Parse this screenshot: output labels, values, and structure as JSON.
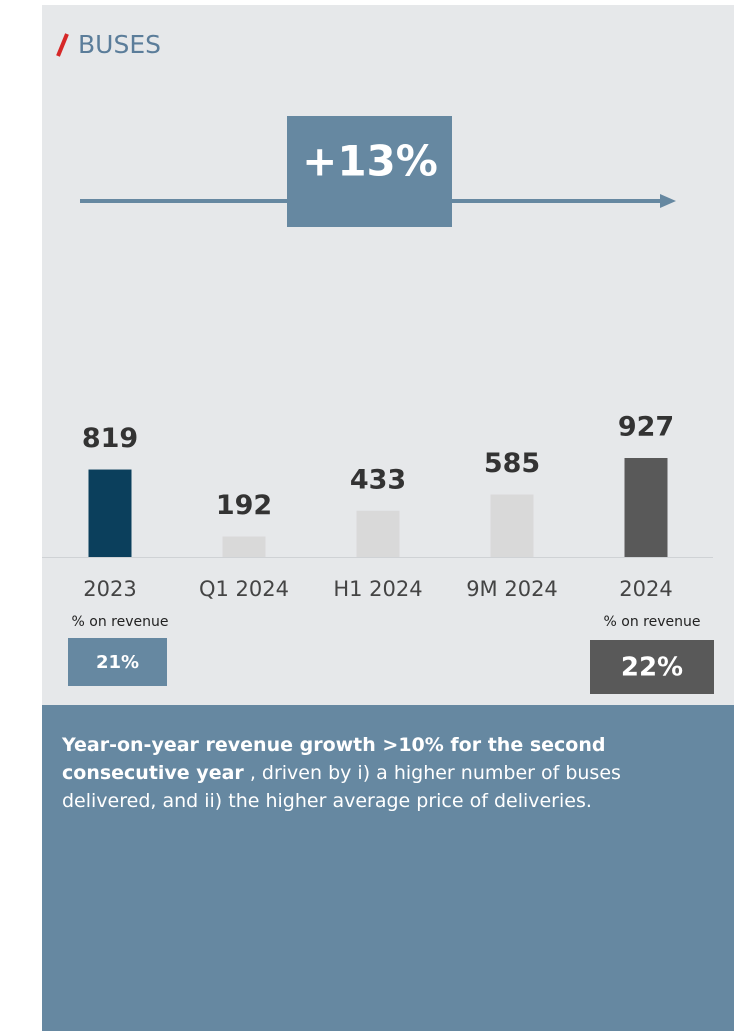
{
  "chart_data": {
    "type": "bar",
    "title": "BUSES",
    "growth": {
      "value": 13,
      "label": "+13%"
    },
    "categories": [
      "2023",
      "Q1 2024",
      "H1 2024",
      "9M 2024",
      "2024"
    ],
    "values": [
      819,
      192,
      433,
      585,
      927
    ],
    "colors": [
      "#0b3f5c",
      "#d9d9d9",
      "#d9d9d9",
      "#d9d9d9",
      "#595959"
    ],
    "revenue_share": [
      {
        "label": "% on revenue",
        "value": 21,
        "value_label": "21%",
        "color": "#6688a1"
      },
      {
        "label": "% on revenue",
        "value": 22,
        "value_label": "22%",
        "color": "#595959"
      }
    ],
    "description": {
      "bold": "Year-on-year revenue growth >10% for the second consecutive year",
      "text": " , driven by i) a higher number of buses delivered, and ii) the higher average price of deliveries."
    }
  }
}
